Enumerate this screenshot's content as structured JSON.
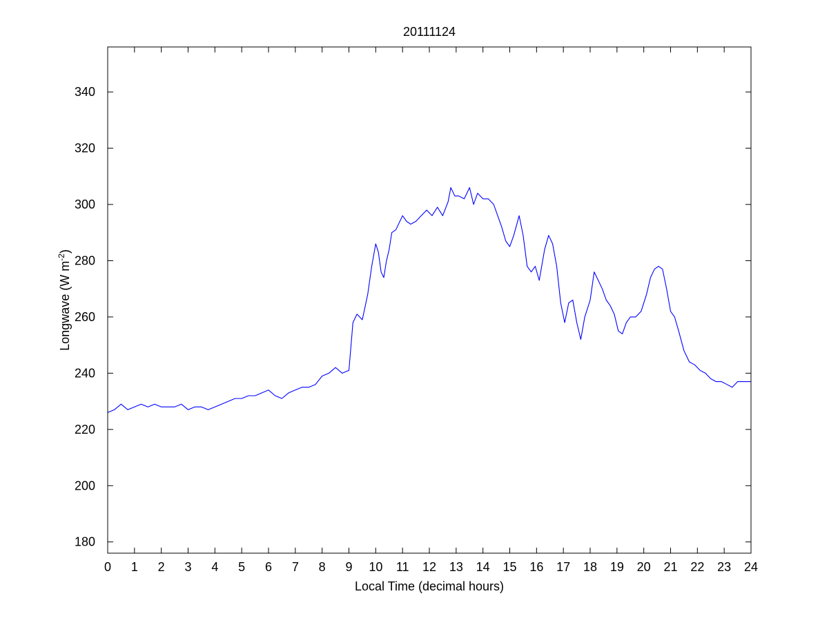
{
  "chart_data": {
    "type": "line",
    "title": "20111124",
    "xlabel": "Local Time (decimal hours)",
    "ylabel": {
      "text": "Longwave (W m",
      "superscript": "-2",
      "suffix": ")"
    },
    "xlim": [
      0,
      24
    ],
    "ylim": [
      176,
      356
    ],
    "xticks": [
      0,
      1,
      2,
      3,
      4,
      5,
      6,
      7,
      8,
      9,
      10,
      11,
      12,
      13,
      14,
      15,
      16,
      17,
      18,
      19,
      20,
      21,
      22,
      23,
      24
    ],
    "yticks": [
      180,
      200,
      220,
      240,
      260,
      280,
      300,
      320,
      340
    ],
    "grid": false,
    "line_color": "#0000ff",
    "series": [
      {
        "x": [
          0.0,
          0.25,
          0.5,
          0.75,
          1.0,
          1.25,
          1.5,
          1.75,
          2.0,
          2.25,
          2.5,
          2.75,
          3.0,
          3.25,
          3.5,
          3.75,
          4.0,
          4.25,
          4.5,
          4.75,
          5.0,
          5.25,
          5.5,
          5.75,
          6.0,
          6.25,
          6.5,
          6.75,
          7.0,
          7.25,
          7.5,
          7.75,
          8.0,
          8.25,
          8.5,
          8.75,
          9.0,
          9.15,
          9.3,
          9.5,
          9.7,
          9.85,
          10.0,
          10.1,
          10.2,
          10.3,
          10.4,
          10.5,
          10.6,
          10.75,
          10.9,
          11.0,
          11.15,
          11.3,
          11.5,
          11.7,
          11.9,
          12.1,
          12.3,
          12.5,
          12.7,
          12.8,
          12.95,
          13.1,
          13.3,
          13.5,
          13.65,
          13.8,
          14.0,
          14.2,
          14.4,
          14.55,
          14.7,
          14.85,
          15.0,
          15.15,
          15.35,
          15.5,
          15.65,
          15.8,
          15.95,
          16.1,
          16.3,
          16.45,
          16.6,
          16.75,
          16.9,
          17.05,
          17.2,
          17.35,
          17.5,
          17.65,
          17.8,
          18.0,
          18.15,
          18.3,
          18.45,
          18.6,
          18.75,
          18.9,
          19.05,
          19.2,
          19.35,
          19.5,
          19.7,
          19.9,
          20.1,
          20.25,
          20.4,
          20.55,
          20.7,
          20.85,
          21.0,
          21.15,
          21.3,
          21.5,
          21.7,
          21.9,
          22.1,
          22.3,
          22.5,
          22.7,
          22.9,
          23.1,
          23.3,
          23.5,
          23.7,
          23.85,
          24.0
        ],
        "y": [
          226,
          227,
          229,
          227,
          228,
          229,
          228,
          229,
          228,
          228,
          228,
          229,
          227,
          228,
          228,
          227,
          228,
          229,
          230,
          231,
          231,
          232,
          232,
          233,
          234,
          232,
          231,
          233,
          234,
          235,
          235,
          236,
          239,
          240,
          242,
          240,
          241,
          258,
          261,
          259,
          268,
          278,
          286,
          283,
          276,
          274,
          280,
          284,
          290,
          291,
          294,
          296,
          294,
          293,
          294,
          296,
          298,
          296,
          299,
          296,
          301,
          306,
          303,
          303,
          302,
          306,
          300,
          304,
          302,
          302,
          300,
          296,
          292,
          287,
          285,
          289,
          296,
          289,
          278,
          276,
          278,
          273,
          284,
          289,
          286,
          278,
          265,
          258,
          265,
          266,
          258,
          252,
          260,
          266,
          276,
          273,
          270,
          266,
          264,
          261,
          255,
          254,
          258,
          260,
          260,
          262,
          268,
          274,
          277,
          278,
          277,
          270,
          262,
          260,
          255,
          248,
          244,
          243,
          241,
          240,
          238,
          237,
          237,
          236,
          235,
          237,
          237,
          237,
          237
        ]
      }
    ]
  }
}
